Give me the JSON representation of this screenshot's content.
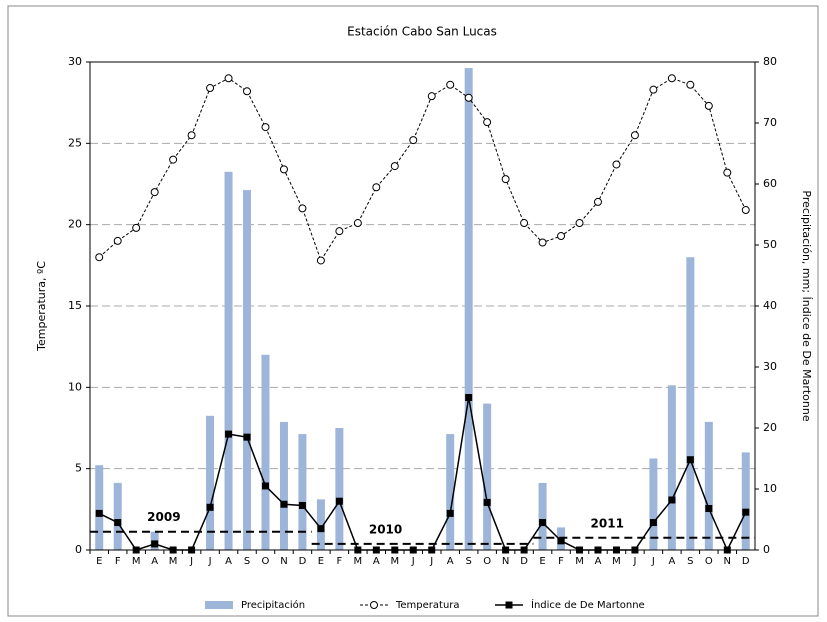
{
  "chart_data": {
    "type": "combo",
    "title": "Estación Cabo San Lucas",
    "ylabel": "Temperatura, ºC",
    "y2label": "Precipitación, mm; Índice de De Martonne",
    "categories": [
      "E",
      "F",
      "M",
      "A",
      "M",
      "J",
      "J",
      "A",
      "S",
      "O",
      "N",
      "D",
      "E",
      "F",
      "M",
      "A",
      "M",
      "J",
      "J",
      "A",
      "S",
      "O",
      "N",
      "D",
      "E",
      "F",
      "M",
      "A",
      "M",
      "J",
      "J",
      "A",
      "S",
      "O",
      "N",
      "D"
    ],
    "ylim": [
      0,
      30
    ],
    "yticks": [
      0,
      5,
      10,
      15,
      20,
      25,
      30
    ],
    "y2lim": [
      0,
      80
    ],
    "y2ticks": [
      0,
      10,
      20,
      30,
      40,
      50,
      60,
      70,
      80
    ],
    "grid": true,
    "series": [
      {
        "name": "Precipitación",
        "type": "bar",
        "axis": "y2",
        "color": "#9db5d9",
        "values": [
          13.9,
          11,
          0,
          3,
          0,
          0,
          22,
          62,
          59,
          32,
          21,
          19,
          8.3,
          20,
          0,
          0,
          0,
          0,
          0,
          19,
          79,
          24,
          0,
          0,
          11,
          3.7,
          0,
          0,
          0,
          0,
          15,
          27,
          48,
          21,
          0,
          16
        ]
      },
      {
        "name": "Temperatura",
        "type": "line",
        "axis": "y",
        "color": "#000000",
        "values": [
          18,
          19,
          19.8,
          22,
          24,
          25.5,
          28.4,
          29,
          28.2,
          26,
          23.4,
          21,
          17.8,
          19.6,
          20.1,
          22.3,
          23.6,
          25.2,
          27.9,
          28.6,
          27.8,
          26.3,
          22.8,
          20.1,
          18.9,
          19.3,
          20.1,
          21.4,
          23.7,
          25.5,
          28.3,
          29,
          28.6,
          27.3,
          23.2,
          20.9
        ]
      },
      {
        "name": "Índice de De Martonne",
        "type": "line",
        "axis": "y2",
        "color": "#000000",
        "values": [
          6,
          4.5,
          0,
          1,
          0,
          0,
          7,
          19,
          18.5,
          10.5,
          7.5,
          7.3,
          3.5,
          8,
          0,
          0,
          0,
          0,
          0,
          6,
          25,
          7.8,
          0,
          0,
          4.5,
          1.5,
          0,
          0,
          0,
          0,
          4.5,
          8.2,
          14.8,
          6.8,
          0,
          6.2
        ]
      }
    ],
    "annual_index": [
      {
        "label": "2009",
        "value": 3
      },
      {
        "label": "2010",
        "value": 1
      },
      {
        "label": "2011",
        "value": 2
      }
    ]
  }
}
